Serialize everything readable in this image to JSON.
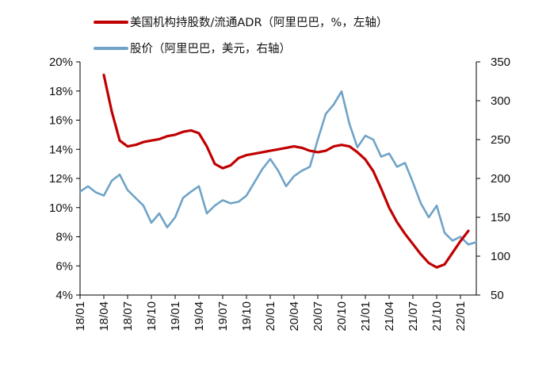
{
  "chart_data": {
    "type": "line",
    "legend": {
      "placement": "top-left",
      "entries": [
        {
          "label": "美国机构持股数/流通ADR（阿里巴巴，%，左轴）",
          "color": "#c00000"
        },
        {
          "label": "股价（阿里巴巴，美元，右轴）",
          "color": "#6fa3c7"
        }
      ]
    },
    "x_axis": {
      "type": "date",
      "ticks": [
        "18/01",
        "18/04",
        "18/07",
        "18/10",
        "19/01",
        "19/04",
        "19/07",
        "19/10",
        "20/01",
        "20/04",
        "20/07",
        "20/10",
        "21/01",
        "21/04",
        "21/07",
        "21/10",
        "22/01"
      ],
      "range": [
        "2018-01",
        "2022-03"
      ]
    },
    "y_left": {
      "ticks": [
        "4%",
        "6%",
        "8%",
        "10%",
        "12%",
        "14%",
        "16%",
        "18%",
        "20%"
      ],
      "range": [
        4,
        20
      ],
      "unit": "%"
    },
    "y_right": {
      "ticks": [
        "50",
        "100",
        "150",
        "200",
        "250",
        "300",
        "350"
      ],
      "range": [
        50,
        350
      ]
    },
    "series": [
      {
        "name": "美国机构持股数/流通ADR（阿里巴巴，%，左轴）",
        "axis": "left",
        "color": "#c00000",
        "points": [
          [
            "2018-04-01",
            19.1
          ],
          [
            "2018-05-01",
            16.6
          ],
          [
            "2018-06-01",
            14.6
          ],
          [
            "2018-07-01",
            14.2
          ],
          [
            "2018-08-01",
            14.3
          ],
          [
            "2018-09-01",
            14.5
          ],
          [
            "2018-10-01",
            14.6
          ],
          [
            "2018-11-01",
            14.7
          ],
          [
            "2018-12-01",
            14.9
          ],
          [
            "2019-01-01",
            15.0
          ],
          [
            "2019-02-01",
            15.2
          ],
          [
            "2019-03-01",
            15.3
          ],
          [
            "2019-04-01",
            15.1
          ],
          [
            "2019-05-01",
            14.2
          ],
          [
            "2019-06-01",
            13.0
          ],
          [
            "2019-07-01",
            12.7
          ],
          [
            "2019-08-01",
            12.9
          ],
          [
            "2019-09-01",
            13.4
          ],
          [
            "2019-10-01",
            13.6
          ],
          [
            "2019-11-01",
            13.7
          ],
          [
            "2019-12-01",
            13.8
          ],
          [
            "2020-01-01",
            13.9
          ],
          [
            "2020-02-01",
            14.0
          ],
          [
            "2020-03-01",
            14.1
          ],
          [
            "2020-04-01",
            14.2
          ],
          [
            "2020-05-01",
            14.1
          ],
          [
            "2020-06-01",
            13.9
          ],
          [
            "2020-07-01",
            13.8
          ],
          [
            "2020-08-01",
            13.9
          ],
          [
            "2020-09-01",
            14.2
          ],
          [
            "2020-10-01",
            14.3
          ],
          [
            "2020-11-01",
            14.2
          ],
          [
            "2020-12-01",
            13.8
          ],
          [
            "2021-01-01",
            13.3
          ],
          [
            "2021-02-01",
            12.5
          ],
          [
            "2021-03-01",
            11.3
          ],
          [
            "2021-04-01",
            10.0
          ],
          [
            "2021-05-01",
            9.0
          ],
          [
            "2021-06-01",
            8.2
          ],
          [
            "2021-07-01",
            7.5
          ],
          [
            "2021-08-01",
            6.8
          ],
          [
            "2021-09-01",
            6.2
          ],
          [
            "2021-10-01",
            5.9
          ],
          [
            "2021-11-01",
            6.1
          ],
          [
            "2021-12-01",
            6.9
          ],
          [
            "2022-01-01",
            7.7
          ],
          [
            "2022-02-01",
            8.4
          ]
        ]
      },
      {
        "name": "股价（阿里巴巴，美元，右轴）",
        "axis": "right",
        "color": "#6fa3c7",
        "points": [
          [
            "2018-01-01",
            183
          ],
          [
            "2018-02-01",
            190
          ],
          [
            "2018-03-01",
            182
          ],
          [
            "2018-04-01",
            178
          ],
          [
            "2018-05-01",
            197
          ],
          [
            "2018-06-01",
            205
          ],
          [
            "2018-07-01",
            185
          ],
          [
            "2018-08-01",
            175
          ],
          [
            "2018-09-01",
            165
          ],
          [
            "2018-10-01",
            143
          ],
          [
            "2018-11-01",
            155
          ],
          [
            "2018-12-01",
            137
          ],
          [
            "2019-01-01",
            150
          ],
          [
            "2019-02-01",
            175
          ],
          [
            "2019-03-01",
            183
          ],
          [
            "2019-04-01",
            190
          ],
          [
            "2019-05-01",
            155
          ],
          [
            "2019-06-01",
            165
          ],
          [
            "2019-07-01",
            172
          ],
          [
            "2019-08-01",
            168
          ],
          [
            "2019-09-01",
            170
          ],
          [
            "2019-10-01",
            178
          ],
          [
            "2019-11-01",
            195
          ],
          [
            "2019-12-01",
            212
          ],
          [
            "2020-01-01",
            225
          ],
          [
            "2020-02-01",
            210
          ],
          [
            "2020-03-01",
            190
          ],
          [
            "2020-04-01",
            203
          ],
          [
            "2020-05-01",
            210
          ],
          [
            "2020-06-01",
            215
          ],
          [
            "2020-07-01",
            250
          ],
          [
            "2020-08-01",
            283
          ],
          [
            "2020-09-01",
            295
          ],
          [
            "2020-10-01",
            312
          ],
          [
            "2020-11-01",
            270
          ],
          [
            "2020-12-01",
            240
          ],
          [
            "2021-01-01",
            255
          ],
          [
            "2021-02-01",
            250
          ],
          [
            "2021-03-01",
            228
          ],
          [
            "2021-04-01",
            232
          ],
          [
            "2021-05-01",
            215
          ],
          [
            "2021-06-01",
            220
          ],
          [
            "2021-07-01",
            195
          ],
          [
            "2021-08-01",
            168
          ],
          [
            "2021-09-01",
            150
          ],
          [
            "2021-10-01",
            165
          ],
          [
            "2021-11-01",
            130
          ],
          [
            "2021-12-01",
            120
          ],
          [
            "2022-01-01",
            125
          ],
          [
            "2022-02-01",
            115
          ],
          [
            "2022-03-01",
            118
          ]
        ]
      }
    ],
    "grid": false
  }
}
